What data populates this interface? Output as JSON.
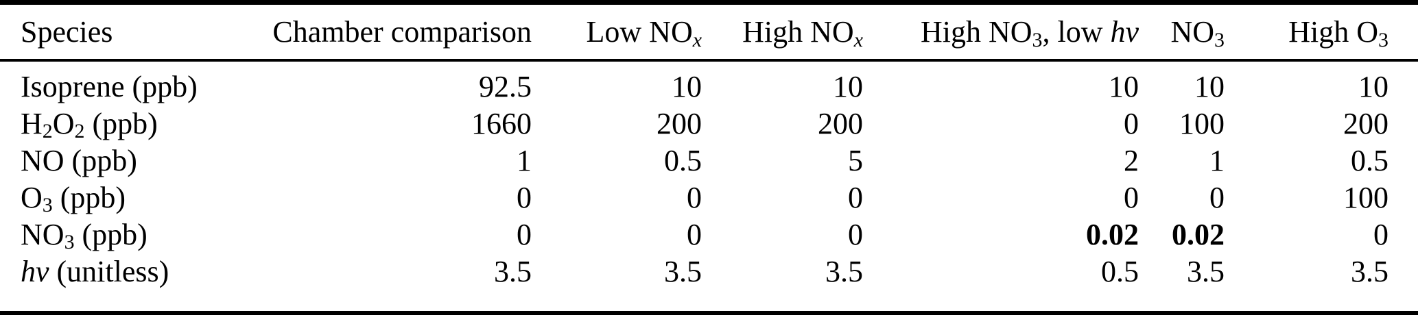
{
  "page": {
    "background_color": "#ffffff",
    "text_color": "#000000",
    "rule_color": "#000000"
  },
  "table": {
    "name": "experiment-initial-conditions-table",
    "header": [
      {
        "align": "left",
        "segments": [
          {
            "t": "Species"
          }
        ]
      },
      {
        "align": "right",
        "segments": [
          {
            "t": "Chamber comparison"
          }
        ]
      },
      {
        "align": "right",
        "segments": [
          {
            "t": "Low NO"
          },
          {
            "t": "x",
            "style": "sub-italic"
          }
        ]
      },
      {
        "align": "right",
        "segments": [
          {
            "t": "High NO"
          },
          {
            "t": "x",
            "style": "sub-italic"
          }
        ]
      },
      {
        "align": "right",
        "segments": [
          {
            "t": "High NO"
          },
          {
            "t": "3",
            "style": "sub"
          },
          {
            "t": ", low "
          },
          {
            "t": "hv",
            "style": "italic"
          }
        ]
      },
      {
        "align": "right",
        "segments": [
          {
            "t": "NO"
          },
          {
            "t": "3",
            "style": "sub"
          }
        ]
      },
      {
        "align": "right",
        "segments": [
          {
            "t": "High O"
          },
          {
            "t": "3",
            "style": "sub"
          }
        ]
      }
    ],
    "rows": [
      {
        "species": [
          {
            "t": "Isoprene (ppb)"
          }
        ],
        "values": [
          [
            {
              "t": "92.5"
            }
          ],
          [
            {
              "t": "10"
            }
          ],
          [
            {
              "t": "10"
            }
          ],
          [
            {
              "t": "10"
            }
          ],
          [
            {
              "t": "10"
            }
          ],
          [
            {
              "t": "10"
            }
          ]
        ]
      },
      {
        "species": [
          {
            "t": "H"
          },
          {
            "t": "2",
            "style": "sub"
          },
          {
            "t": "O"
          },
          {
            "t": "2",
            "style": "sub"
          },
          {
            "t": " (ppb)"
          }
        ],
        "values": [
          [
            {
              "t": "1660"
            }
          ],
          [
            {
              "t": "200"
            }
          ],
          [
            {
              "t": "200"
            }
          ],
          [
            {
              "t": "0"
            }
          ],
          [
            {
              "t": "100"
            }
          ],
          [
            {
              "t": "200"
            }
          ]
        ]
      },
      {
        "species": [
          {
            "t": "NO (ppb)"
          }
        ],
        "values": [
          [
            {
              "t": "1"
            }
          ],
          [
            {
              "t": "0.5"
            }
          ],
          [
            {
              "t": "5"
            }
          ],
          [
            {
              "t": "2"
            }
          ],
          [
            {
              "t": "1"
            }
          ],
          [
            {
              "t": "0.5"
            }
          ]
        ]
      },
      {
        "species": [
          {
            "t": "O"
          },
          {
            "t": "3",
            "style": "sub"
          },
          {
            "t": " (ppb)"
          }
        ],
        "values": [
          [
            {
              "t": "0"
            }
          ],
          [
            {
              "t": "0"
            }
          ],
          [
            {
              "t": "0"
            }
          ],
          [
            {
              "t": "0"
            }
          ],
          [
            {
              "t": "0"
            }
          ],
          [
            {
              "t": "100"
            }
          ]
        ]
      },
      {
        "species": [
          {
            "t": "NO"
          },
          {
            "t": "3",
            "style": "sub"
          },
          {
            "t": " (ppb)"
          }
        ],
        "values": [
          [
            {
              "t": "0"
            }
          ],
          [
            {
              "t": "0"
            }
          ],
          [
            {
              "t": "0"
            }
          ],
          [
            {
              "t": "0.02",
              "style": "bold"
            }
          ],
          [
            {
              "t": "0.02",
              "style": "bold"
            }
          ],
          [
            {
              "t": "0"
            }
          ]
        ]
      },
      {
        "species": [
          {
            "t": "hv",
            "style": "italic"
          },
          {
            "t": " (unitless)"
          }
        ],
        "values": [
          [
            {
              "t": "3.5"
            }
          ],
          [
            {
              "t": "3.5"
            }
          ],
          [
            {
              "t": "3.5"
            }
          ],
          [
            {
              "t": "0.5"
            }
          ],
          [
            {
              "t": "3.5"
            }
          ],
          [
            {
              "t": "3.5"
            }
          ]
        ]
      }
    ]
  }
}
